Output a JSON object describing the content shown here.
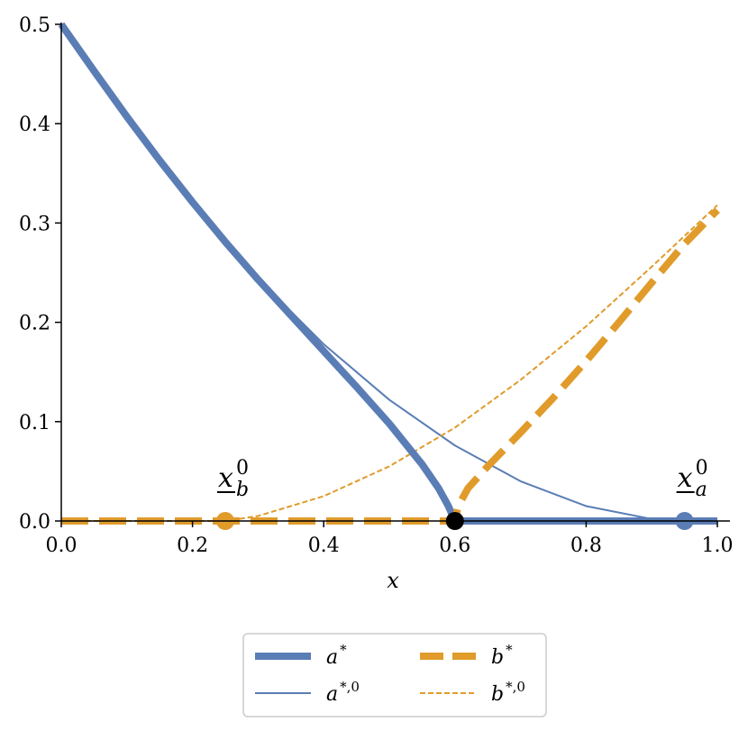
{
  "chart_data": {
    "type": "line",
    "title": "",
    "xlabel": "x",
    "ylabel": "",
    "xlim": [
      0.0,
      1.0
    ],
    "ylim": [
      0.0,
      0.5
    ],
    "xticks": [
      0.0,
      0.2,
      0.4,
      0.6,
      0.8,
      1.0
    ],
    "yticks": [
      0.0,
      0.1,
      0.2,
      0.3,
      0.4,
      0.5
    ],
    "xtick_labels": [
      "0.0",
      "0.2",
      "0.4",
      "0.6",
      "0.8",
      "1.0"
    ],
    "ytick_labels": [
      "0.0",
      "0.1",
      "0.2",
      "0.3",
      "0.4",
      "0.5"
    ],
    "grid": false,
    "legend_position": "bottom-center-below",
    "colors": {
      "blue": "#5a7db5",
      "orange": "#e09b2b",
      "black": "#000000"
    },
    "series": [
      {
        "name": "a*",
        "style": "thick-solid",
        "color": "#5a7db5",
        "points": [
          [
            0.0,
            0.5
          ],
          [
            0.05,
            0.453
          ],
          [
            0.1,
            0.407
          ],
          [
            0.15,
            0.363
          ],
          [
            0.2,
            0.321
          ],
          [
            0.25,
            0.281
          ],
          [
            0.3,
            0.243
          ],
          [
            0.35,
            0.207
          ],
          [
            0.4,
            0.171
          ],
          [
            0.45,
            0.135
          ],
          [
            0.5,
            0.098
          ],
          [
            0.55,
            0.057
          ],
          [
            0.575,
            0.033
          ],
          [
            0.59,
            0.015
          ],
          [
            0.6,
            0.0
          ],
          [
            1.0,
            0.0
          ]
        ]
      },
      {
        "name": "a*,0",
        "style": "thin-solid",
        "color": "#5a7db5",
        "points": [
          [
            0.0,
            0.5
          ],
          [
            0.1,
            0.404
          ],
          [
            0.2,
            0.319
          ],
          [
            0.3,
            0.244
          ],
          [
            0.4,
            0.178
          ],
          [
            0.5,
            0.122
          ],
          [
            0.6,
            0.076
          ],
          [
            0.7,
            0.04
          ],
          [
            0.8,
            0.015
          ],
          [
            0.9,
            0.002
          ],
          [
            0.95,
            0.0
          ],
          [
            1.0,
            0.0
          ]
        ]
      },
      {
        "name": "b*",
        "style": "thick-dashed",
        "color": "#e09b2b",
        "points": [
          [
            0.0,
            0.0
          ],
          [
            0.6,
            0.0
          ],
          [
            0.605,
            0.015
          ],
          [
            0.62,
            0.033
          ],
          [
            0.65,
            0.055
          ],
          [
            0.7,
            0.089
          ],
          [
            0.75,
            0.124
          ],
          [
            0.8,
            0.161
          ],
          [
            0.85,
            0.2
          ],
          [
            0.9,
            0.24
          ],
          [
            0.95,
            0.279
          ],
          [
            1.0,
            0.313
          ]
        ]
      },
      {
        "name": "b*,0",
        "style": "thin-dashed",
        "color": "#e09b2b",
        "points": [
          [
            0.0,
            0.0
          ],
          [
            0.25,
            0.0
          ],
          [
            0.3,
            0.005
          ],
          [
            0.4,
            0.025
          ],
          [
            0.5,
            0.055
          ],
          [
            0.6,
            0.094
          ],
          [
            0.7,
            0.142
          ],
          [
            0.8,
            0.196
          ],
          [
            0.9,
            0.256
          ],
          [
            1.0,
            0.318
          ]
        ]
      }
    ],
    "markers": [
      {
        "name": "x_b-zero-marker",
        "x": 0.25,
        "y": 0.0,
        "color": "#e09b2b"
      },
      {
        "name": "x_a-zero-marker",
        "x": 0.95,
        "y": 0.0,
        "color": "#5a7db5"
      },
      {
        "name": "intersection-marker",
        "x": 0.6,
        "y": 0.0,
        "color": "#000000"
      }
    ],
    "annotations": [
      {
        "name": "x_b-zero-label",
        "x": 0.25,
        "y": 0.0,
        "main": "x",
        "sup": "0",
        "sub": "b"
      },
      {
        "name": "x_a-zero-label",
        "x": 0.95,
        "y": 0.0,
        "main": "x",
        "sup": "0",
        "sub": "a"
      }
    ],
    "legend": [
      {
        "label": "a",
        "sup": "*",
        "series": 0
      },
      {
        "label": "b",
        "sup": "*",
        "series": 2
      },
      {
        "label": "a",
        "sup": "*,0",
        "series": 1
      },
      {
        "label": "b",
        "sup": "*,0",
        "series": 3
      }
    ]
  }
}
